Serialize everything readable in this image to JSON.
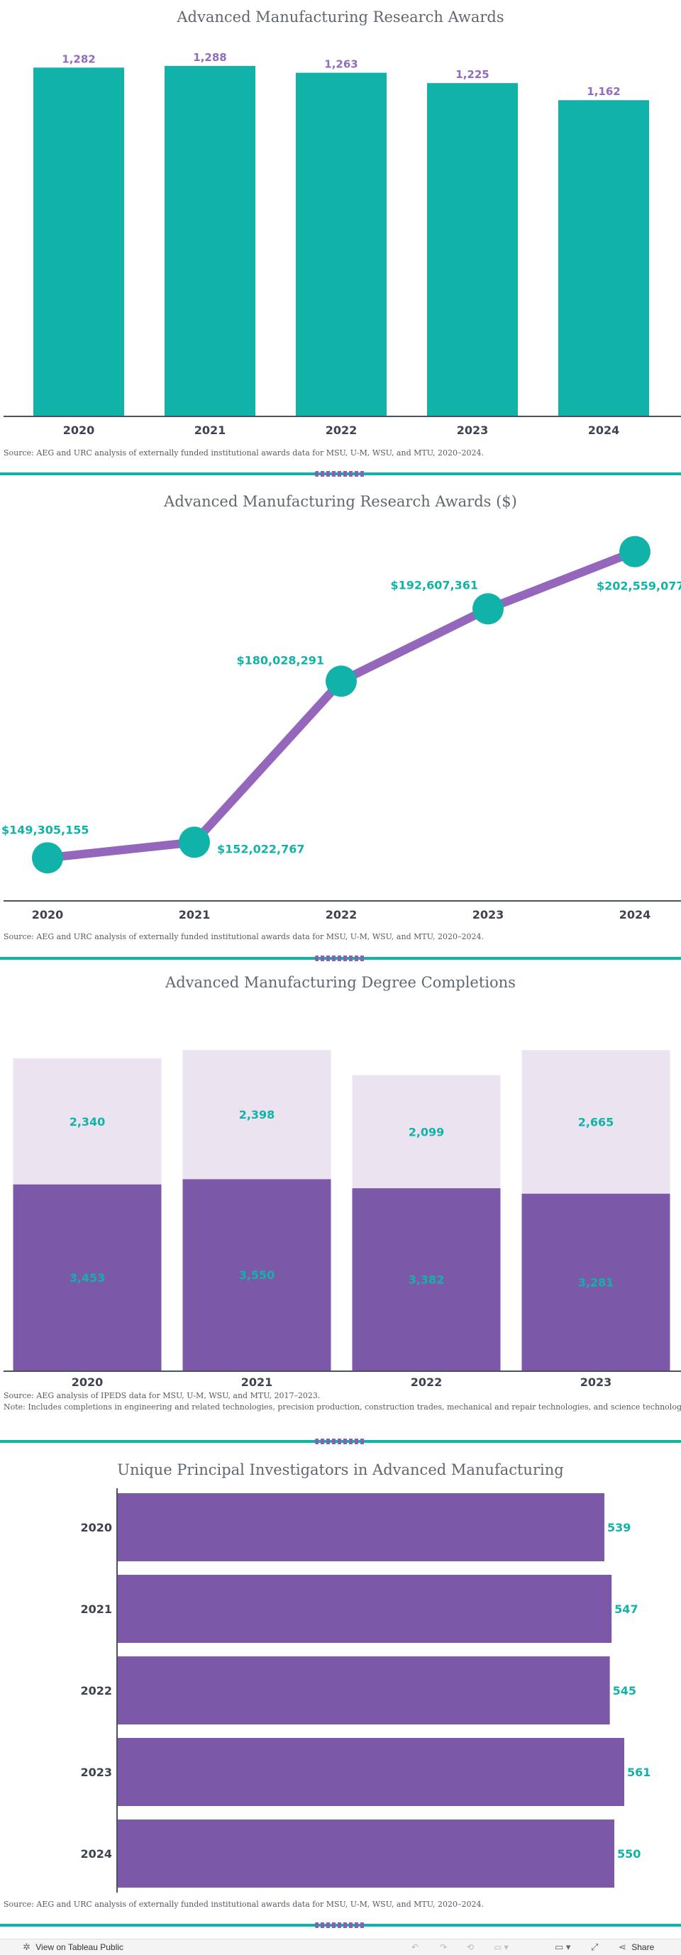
{
  "colors": {
    "teal": "#11b3a9",
    "purple": "#7b59a8",
    "purple_line": "#9467bd",
    "lavender": "#ece3f0",
    "axis": "#4a5260",
    "tick_label": "#3d4450",
    "value_label_purple": "#8f6cc0"
  },
  "chart_data": [
    {
      "id": "awards_count",
      "type": "bar",
      "title": "Advanced Manufacturing Research Awards",
      "categories": [
        "2020",
        "2021",
        "2022",
        "2023",
        "2024"
      ],
      "values": [
        1282,
        1288,
        1263,
        1225,
        1162
      ],
      "value_labels": [
        "1,282",
        "1,288",
        "1,263",
        "1,225",
        "1,162"
      ],
      "ylim": [
        0,
        1288
      ],
      "xlabel": "",
      "ylabel": "",
      "source": "Source: AEG and URC analysis of externally funded institutional awards data for MSU, U-M, WSU, and MTU, 2020–2024."
    },
    {
      "id": "awards_dollars",
      "type": "line",
      "title": "Advanced Manufacturing Research Awards ($)",
      "categories": [
        "2020",
        "2021",
        "2022",
        "2023",
        "2024"
      ],
      "values": [
        149305155,
        152022767,
        180028291,
        192607361,
        202559077
      ],
      "value_labels": [
        "$149,305,155",
        "$152,022,767",
        "$180,028,291",
        "$192,607,361",
        "$202,559,077"
      ],
      "ylim": [
        147000000,
        203500000
      ],
      "xlabel": "",
      "ylabel": "",
      "source": "Source: AEG and URC analysis of externally funded institutional awards data for MSU, U-M, WSU, and MTU, 2020–2024."
    },
    {
      "id": "degree_completions",
      "type": "bar",
      "stacked": true,
      "title": "Advanced Manufacturing Degree Completions",
      "categories": [
        "2020",
        "2021",
        "2022",
        "2023"
      ],
      "series": [
        {
          "name": "lower",
          "values": [
            3453,
            3550,
            3382,
            3281
          ],
          "value_labels": [
            "3,453",
            "3,550",
            "3,382",
            "3,281"
          ]
        },
        {
          "name": "upper",
          "values": [
            2340,
            2398,
            2099,
            2665
          ],
          "value_labels": [
            "2,340",
            "2,398",
            "2,099",
            "2,665"
          ]
        }
      ],
      "ylim": [
        0,
        5950
      ],
      "xlabel": "",
      "ylabel": "",
      "source": "Source: AEG analysis of IPEDS data for MSU, U-M, WSU, and MTU, 2017–2023.",
      "note": "Note: Includes completions in engineering and related technologies, precision production, construction trades, mechanical and repair technologies, and science technologies."
    },
    {
      "id": "unique_pis",
      "type": "bar",
      "orientation": "horizontal",
      "title": "Unique Principal Investigators in Advanced Manufacturing",
      "categories": [
        "2020",
        "2021",
        "2022",
        "2023",
        "2024"
      ],
      "values": [
        539,
        547,
        545,
        561,
        550
      ],
      "value_labels": [
        "539",
        "547",
        "545",
        "561",
        "550"
      ],
      "xlim": [
        0,
        561
      ],
      "xlabel": "",
      "ylabel": "",
      "source": "Source: AEG and URC analysis of externally funded institutional awards data for MSU, U-M, WSU, and MTU, 2020–2024."
    }
  ],
  "toolbar": {
    "view_label": "View on Tableau Public",
    "share_label": "Share"
  }
}
